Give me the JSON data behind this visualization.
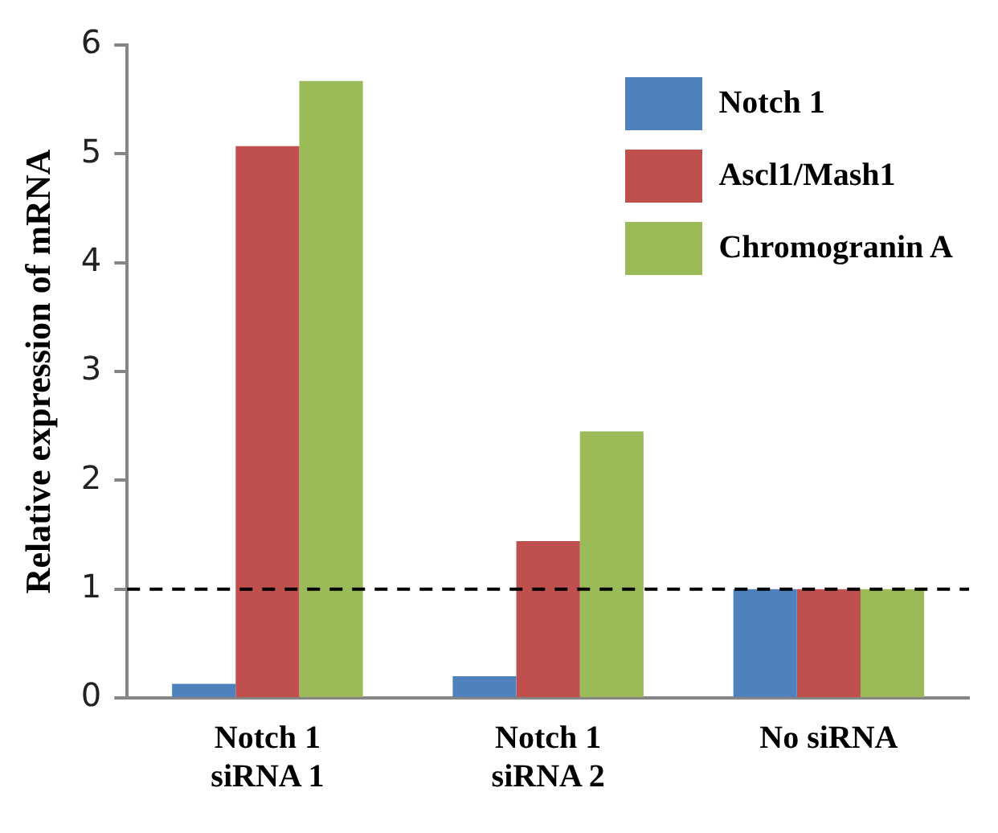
{
  "chart_data": {
    "type": "bar",
    "ylabel": "Relative expression of mRNA",
    "categories": [
      "Notch 1 siRNA 1",
      "Notch 1 siRNA 2",
      "No siRNA"
    ],
    "series": [
      {
        "name": "Notch 1",
        "color": "#4f81bd",
        "values": [
          0.13,
          0.2,
          1.0
        ]
      },
      {
        "name": "Ascl1/Mash1",
        "color": "#c0504d",
        "values": [
          5.07,
          1.44,
          1.0
        ]
      },
      {
        "name": "Chromogranin A",
        "color": "#9bbb59",
        "values": [
          5.67,
          2.45,
          1.0
        ]
      }
    ],
    "ylim": [
      0,
      6
    ],
    "yticks": [
      0,
      1,
      2,
      3,
      4,
      5,
      6
    ],
    "grid": false,
    "legend": "top right",
    "ref_lines": [
      {
        "axis": "y",
        "value": 1,
        "color": "#000000",
        "line_style": "dashed"
      }
    ]
  }
}
